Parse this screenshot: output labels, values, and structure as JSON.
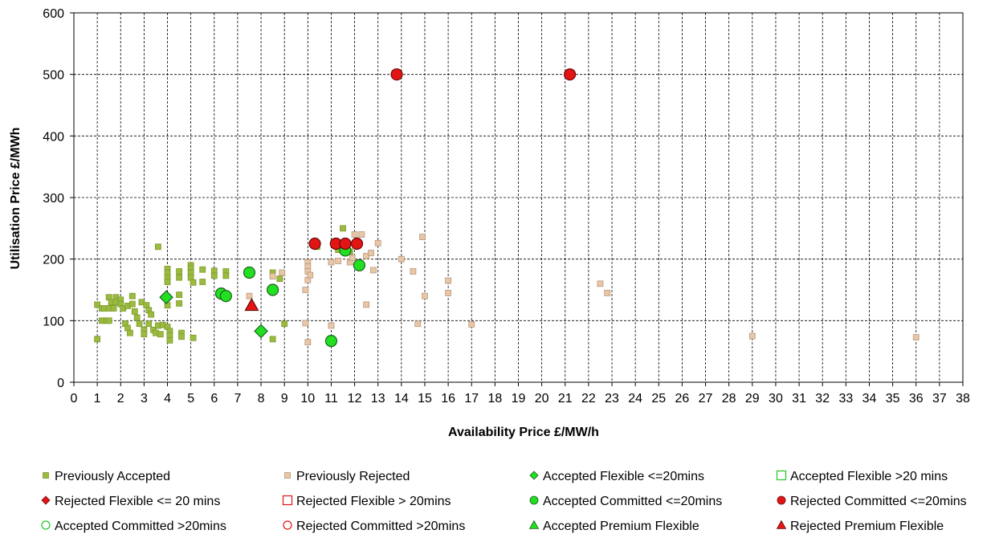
{
  "chart_data": {
    "type": "scatter",
    "xlabel": "Availability Price £/MW/h",
    "ylabel": "Utilisation Price £/MWh",
    "xlim": [
      0,
      38
    ],
    "ylim": [
      0,
      600
    ],
    "xticks": [
      "0",
      "1",
      "2",
      "3",
      "4",
      "5",
      "6",
      "7",
      "8",
      "9",
      "10",
      "11",
      "12",
      "13",
      "14",
      "15",
      "16",
      "17",
      "18",
      "19",
      "20",
      "21",
      "22",
      "23",
      "24",
      "25",
      "26",
      "27",
      "28",
      "29",
      "30",
      "31",
      "32",
      "33",
      "34",
      "35",
      "36",
      "37",
      "38"
    ],
    "yticks": [
      "0",
      "100",
      "200",
      "300",
      "400",
      "500",
      "600"
    ],
    "grid": "dashed",
    "legend_position": "bottom",
    "series": [
      {
        "name": "Previously Accepted",
        "marker": "square-small",
        "fill": "#9ABB3F",
        "stroke": "#7E9A2E",
        "points": [
          [
            1.0,
            126
          ],
          [
            1.0,
            70
          ],
          [
            1.2,
            120
          ],
          [
            1.2,
            100
          ],
          [
            1.3,
            120
          ],
          [
            1.4,
            100
          ],
          [
            1.5,
            120
          ],
          [
            1.5,
            100
          ],
          [
            1.5,
            138
          ],
          [
            1.6,
            130
          ],
          [
            1.7,
            120
          ],
          [
            1.8,
            138
          ],
          [
            1.8,
            130
          ],
          [
            2.0,
            134
          ],
          [
            2.0,
            127
          ],
          [
            2.1,
            120
          ],
          [
            2.2,
            95
          ],
          [
            2.3,
            124
          ],
          [
            2.3,
            88
          ],
          [
            2.4,
            80
          ],
          [
            2.5,
            140
          ],
          [
            2.5,
            127
          ],
          [
            2.6,
            115
          ],
          [
            2.7,
            105
          ],
          [
            2.8,
            95
          ],
          [
            2.9,
            130
          ],
          [
            3.0,
            85
          ],
          [
            3.0,
            78
          ],
          [
            3.1,
            125
          ],
          [
            3.2,
            117
          ],
          [
            3.2,
            95
          ],
          [
            3.3,
            110
          ],
          [
            3.4,
            85
          ],
          [
            3.5,
            80
          ],
          [
            3.6,
            220
          ],
          [
            3.6,
            92
          ],
          [
            3.7,
            78
          ],
          [
            3.8,
            93
          ],
          [
            4.0,
            184
          ],
          [
            4.0,
            178
          ],
          [
            4.0,
            170
          ],
          [
            4.0,
            163
          ],
          [
            4.0,
            125
          ],
          [
            4.0,
            90
          ],
          [
            4.1,
            83
          ],
          [
            4.1,
            76
          ],
          [
            4.1,
            68
          ],
          [
            4.5,
            180
          ],
          [
            4.5,
            170
          ],
          [
            4.5,
            128
          ],
          [
            4.5,
            142
          ],
          [
            4.6,
            80
          ],
          [
            4.6,
            74
          ],
          [
            5.0,
            190
          ],
          [
            5.0,
            185
          ],
          [
            5.0,
            178
          ],
          [
            5.0,
            170
          ],
          [
            5.1,
            162
          ],
          [
            5.1,
            72
          ],
          [
            5.5,
            183
          ],
          [
            5.5,
            163
          ],
          [
            6.0,
            181
          ],
          [
            6.0,
            173
          ],
          [
            6.5,
            180
          ],
          [
            6.5,
            173
          ],
          [
            8.5,
            178
          ],
          [
            8.5,
            70
          ],
          [
            8.8,
            168
          ],
          [
            9.0,
            95
          ],
          [
            10.4,
            220
          ],
          [
            11.3,
            215
          ],
          [
            11.4,
            222
          ],
          [
            11.5,
            250
          ],
          [
            11.8,
            212
          ]
        ]
      },
      {
        "name": "Previously Rejected",
        "marker": "square-small",
        "fill": "#E8C6A6",
        "stroke": "#B89A80",
        "points": [
          [
            7.5,
            140
          ],
          [
            8.5,
            172
          ],
          [
            8.9,
            178
          ],
          [
            9.9,
            150
          ],
          [
            9.9,
            96
          ],
          [
            10.0,
            195
          ],
          [
            10.0,
            188
          ],
          [
            10.0,
            180
          ],
          [
            10.0,
            166
          ],
          [
            10.1,
            174
          ],
          [
            10.0,
            65
          ],
          [
            11.0,
            195
          ],
          [
            11.0,
            92
          ],
          [
            11.3,
            197
          ],
          [
            11.8,
            195
          ],
          [
            11.9,
            202
          ],
          [
            12.0,
            240
          ],
          [
            12.3,
            240
          ],
          [
            12.5,
            205
          ],
          [
            12.5,
            126
          ],
          [
            12.7,
            210
          ],
          [
            12.8,
            182
          ],
          [
            13.0,
            226
          ],
          [
            14.0,
            200
          ],
          [
            14.5,
            180
          ],
          [
            14.7,
            95
          ],
          [
            14.9,
            236
          ],
          [
            15.0,
            140
          ],
          [
            16.0,
            165
          ],
          [
            16.0,
            145
          ],
          [
            17.0,
            94
          ],
          [
            22.5,
            160
          ],
          [
            22.8,
            145
          ],
          [
            29.0,
            75
          ],
          [
            36.0,
            73
          ]
        ]
      },
      {
        "name": "Accepted Flexible <=20mins",
        "marker": "diamond",
        "fill": "#21E021",
        "stroke": "#1E5E1E",
        "points": [
          [
            3.95,
            138
          ],
          [
            8.0,
            83
          ]
        ]
      },
      {
        "name": "Accepted Flexible >20 mins",
        "marker": "square-open",
        "fill": "none",
        "stroke": "#21C821",
        "points": []
      },
      {
        "name": "Rejected Flexible <= 20 mins",
        "marker": "diamond",
        "fill": "#E31414",
        "stroke": "#7A0E0E",
        "points": []
      },
      {
        "name": "Rejected Flexible > 20mins",
        "marker": "square-open",
        "fill": "none",
        "stroke": "#E31414",
        "points": []
      },
      {
        "name": "Accepted Committed <=20mins",
        "marker": "circle",
        "fill": "#21E021",
        "stroke": "#1E5E1E",
        "points": [
          [
            6.3,
            144
          ],
          [
            6.5,
            140
          ],
          [
            7.5,
            178
          ],
          [
            8.5,
            150
          ],
          [
            11.0,
            67
          ],
          [
            11.6,
            214
          ],
          [
            12.2,
            190
          ]
        ]
      },
      {
        "name": "Rejected Committed <=20mins",
        "marker": "circle",
        "fill": "#E31414",
        "stroke": "#6B0A0A",
        "points": [
          [
            13.8,
            500
          ],
          [
            21.2,
            500
          ],
          [
            10.3,
            225
          ],
          [
            11.2,
            225
          ],
          [
            11.6,
            225
          ],
          [
            12.1,
            225
          ]
        ]
      },
      {
        "name": "Accepted Committed >20mins",
        "marker": "circle-open",
        "fill": "none",
        "stroke": "#21C821",
        "points": []
      },
      {
        "name": "Rejected Committed >20mins",
        "marker": "circle-open",
        "fill": "none",
        "stroke": "#E31414",
        "points": []
      },
      {
        "name": "Accepted Premium Flexible",
        "marker": "triangle",
        "fill": "#21E021",
        "stroke": "#1E5E1E",
        "points": []
      },
      {
        "name": "Rejected Premium Flexible",
        "marker": "triangle",
        "fill": "#E31414",
        "stroke": "#6B0A0A",
        "points": [
          [
            7.6,
            125
          ]
        ]
      }
    ]
  }
}
